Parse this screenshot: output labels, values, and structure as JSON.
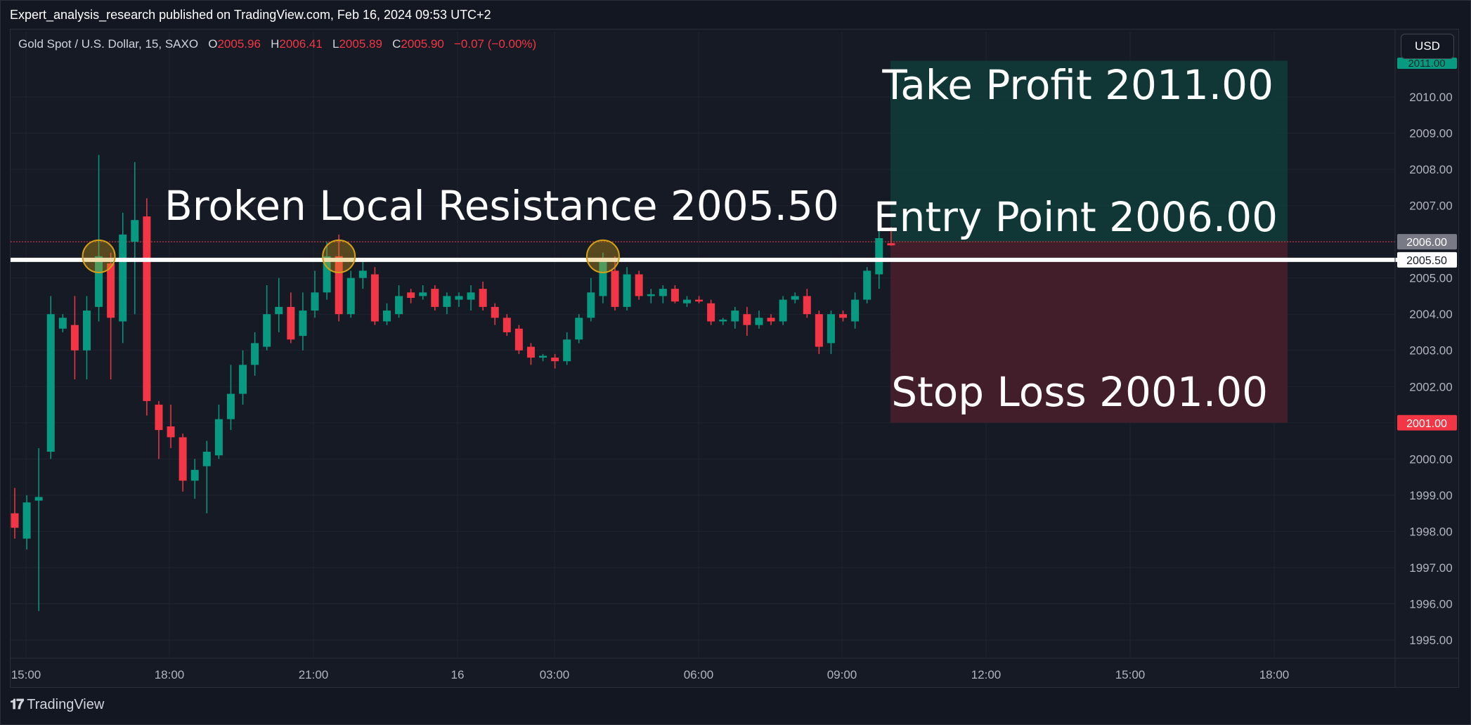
{
  "header": {
    "publisher": "Expert_analysis_research published on TradingView.com, Feb 16, 2024 09:53 UTC+2",
    "symbol": "Gold Spot / U.S. Dollar, 15, SAXO",
    "ohlc": {
      "o_label": "O",
      "o": "2005.96",
      "h_label": "H",
      "h": "2006.41",
      "l_label": "L",
      "l": "2005.89",
      "c_label": "C",
      "c": "2005.90",
      "change": "−0.07 (−0.00%)"
    },
    "currency": "USD"
  },
  "footer": {
    "brand": "TradingView"
  },
  "colors": {
    "up": "#089981",
    "down": "#f23645",
    "background": "#131722",
    "grid": "#1f2430",
    "resistance_line": "#ffffff",
    "marker": "#d4a017"
  },
  "chart_data": {
    "type": "candlestick",
    "y_range": [
      1994.6,
      2011.2
    ],
    "y_ticks": [
      "1995.00",
      "1996.00",
      "1997.00",
      "1998.00",
      "1999.00",
      "2000.00",
      "2001.00",
      "2002.00",
      "2003.00",
      "2004.00",
      "2005.00",
      "2006.00",
      "2007.00",
      "2008.00",
      "2009.00",
      "2010.00"
    ],
    "x_ticks": [
      "15:00",
      "18:00",
      "21:00",
      "16",
      "03:00",
      "06:00",
      "09:00",
      "12:00",
      "15:00",
      "18:00"
    ],
    "candles": [
      {
        "o": 1998.5,
        "h": 1999.2,
        "l": 1997.8,
        "c": 1998.1
      },
      {
        "o": 1997.8,
        "h": 1999.0,
        "l": 1997.5,
        "c": 1998.8
      },
      {
        "o": 1998.85,
        "h": 2000.3,
        "l": 1995.8,
        "c": 1998.95
      },
      {
        "o": 2000.2,
        "h": 2004.5,
        "l": 2000.0,
        "c": 2004.0
      },
      {
        "o": 2003.6,
        "h": 2004.0,
        "l": 2003.5,
        "c": 2003.9
      },
      {
        "o": 2003.7,
        "h": 2004.5,
        "l": 2002.2,
        "c": 2003.0
      },
      {
        "o": 2003.0,
        "h": 2004.5,
        "l": 2002.2,
        "c": 2004.1
      },
      {
        "o": 2004.2,
        "h": 2008.4,
        "l": 2003.8,
        "c": 2005.6
      },
      {
        "o": 2005.4,
        "h": 2005.7,
        "l": 2002.2,
        "c": 2003.9
      },
      {
        "o": 2003.8,
        "h": 2006.8,
        "l": 2003.2,
        "c": 2006.2
      },
      {
        "o": 2006.0,
        "h": 2008.2,
        "l": 2004.0,
        "c": 2006.6
      },
      {
        "o": 2006.7,
        "h": 2007.2,
        "l": 2001.2,
        "c": 2001.6
      },
      {
        "o": 2001.5,
        "h": 2001.6,
        "l": 2000.0,
        "c": 2000.8
      },
      {
        "o": 2000.9,
        "h": 2001.5,
        "l": 2000.3,
        "c": 2000.6
      },
      {
        "o": 2000.6,
        "h": 2000.7,
        "l": 1999.1,
        "c": 1999.4
      },
      {
        "o": 1999.4,
        "h": 2000.0,
        "l": 1998.9,
        "c": 1999.7
      },
      {
        "o": 1999.8,
        "h": 2000.5,
        "l": 1998.5,
        "c": 2000.2
      },
      {
        "o": 2000.1,
        "h": 2001.5,
        "l": 2000.0,
        "c": 2001.1
      },
      {
        "o": 2001.1,
        "h": 2002.6,
        "l": 2000.8,
        "c": 2001.8
      },
      {
        "o": 2001.8,
        "h": 2003.0,
        "l": 2001.5,
        "c": 2002.6
      },
      {
        "o": 2002.6,
        "h": 2003.5,
        "l": 2002.3,
        "c": 2003.2
      },
      {
        "o": 2003.1,
        "h": 2004.8,
        "l": 2003.0,
        "c": 2004.0
      },
      {
        "o": 2004.0,
        "h": 2005.0,
        "l": 2003.5,
        "c": 2004.2
      },
      {
        "o": 2004.2,
        "h": 2004.6,
        "l": 2003.2,
        "c": 2003.3
      },
      {
        "o": 2003.4,
        "h": 2004.6,
        "l": 2003.0,
        "c": 2004.1
      },
      {
        "o": 2004.1,
        "h": 2005.2,
        "l": 2003.9,
        "c": 2004.6
      },
      {
        "o": 2004.6,
        "h": 2006.0,
        "l": 2004.4,
        "c": 2005.6
      },
      {
        "o": 2005.6,
        "h": 2006.2,
        "l": 2003.8,
        "c": 2004.0
      },
      {
        "o": 2004.0,
        "h": 2005.2,
        "l": 2003.9,
        "c": 2005.0
      },
      {
        "o": 2005.0,
        "h": 2005.5,
        "l": 2004.7,
        "c": 2005.2
      },
      {
        "o": 2005.1,
        "h": 2005.3,
        "l": 2003.7,
        "c": 2003.8
      },
      {
        "o": 2003.8,
        "h": 2004.3,
        "l": 2003.7,
        "c": 2004.1
      },
      {
        "o": 2004.0,
        "h": 2004.8,
        "l": 2003.9,
        "c": 2004.5
      },
      {
        "o": 2004.6,
        "h": 2004.7,
        "l": 2004.3,
        "c": 2004.45
      },
      {
        "o": 2004.5,
        "h": 2004.8,
        "l": 2004.4,
        "c": 2004.6
      },
      {
        "o": 2004.7,
        "h": 2004.8,
        "l": 2004.1,
        "c": 2004.2
      },
      {
        "o": 2004.2,
        "h": 2004.6,
        "l": 2004.0,
        "c": 2004.5
      },
      {
        "o": 2004.4,
        "h": 2004.6,
        "l": 2004.2,
        "c": 2004.5
      },
      {
        "o": 2004.4,
        "h": 2004.8,
        "l": 2004.1,
        "c": 2004.6
      },
      {
        "o": 2004.7,
        "h": 2004.9,
        "l": 2004.1,
        "c": 2004.2
      },
      {
        "o": 2004.2,
        "h": 2004.3,
        "l": 2003.7,
        "c": 2003.9
      },
      {
        "o": 2003.9,
        "h": 2004.0,
        "l": 2003.4,
        "c": 2003.5
      },
      {
        "o": 2003.6,
        "h": 2003.7,
        "l": 2002.9,
        "c": 2003.0
      },
      {
        "o": 2003.1,
        "h": 2003.2,
        "l": 2002.6,
        "c": 2002.8
      },
      {
        "o": 2002.8,
        "h": 2002.9,
        "l": 2002.7,
        "c": 2002.85
      },
      {
        "o": 2002.8,
        "h": 2002.9,
        "l": 2002.5,
        "c": 2002.7
      },
      {
        "o": 2002.7,
        "h": 2003.5,
        "l": 2002.6,
        "c": 2003.3
      },
      {
        "o": 2003.3,
        "h": 2004.0,
        "l": 2003.2,
        "c": 2003.9
      },
      {
        "o": 2003.9,
        "h": 2005.0,
        "l": 2003.8,
        "c": 2004.6
      },
      {
        "o": 2004.5,
        "h": 2005.7,
        "l": 2004.3,
        "c": 2005.5
      },
      {
        "o": 2005.2,
        "h": 2005.6,
        "l": 2004.1,
        "c": 2004.2
      },
      {
        "o": 2004.2,
        "h": 2005.3,
        "l": 2004.1,
        "c": 2005.1
      },
      {
        "o": 2005.1,
        "h": 2005.2,
        "l": 2004.4,
        "c": 2004.5
      },
      {
        "o": 2004.5,
        "h": 2004.7,
        "l": 2004.3,
        "c": 2004.55
      },
      {
        "o": 2004.5,
        "h": 2004.8,
        "l": 2004.3,
        "c": 2004.7
      },
      {
        "o": 2004.7,
        "h": 2004.8,
        "l": 2004.3,
        "c": 2004.35
      },
      {
        "o": 2004.3,
        "h": 2004.5,
        "l": 2004.2,
        "c": 2004.4
      },
      {
        "o": 2004.4,
        "h": 2004.5,
        "l": 2004.3,
        "c": 2004.35
      },
      {
        "o": 2004.3,
        "h": 2004.4,
        "l": 2003.7,
        "c": 2003.8
      },
      {
        "o": 2003.8,
        "h": 2003.9,
        "l": 2003.7,
        "c": 2003.85
      },
      {
        "o": 2003.8,
        "h": 2004.2,
        "l": 2003.6,
        "c": 2004.1
      },
      {
        "o": 2004.0,
        "h": 2004.2,
        "l": 2003.4,
        "c": 2003.7
      },
      {
        "o": 2003.7,
        "h": 2004.1,
        "l": 2003.6,
        "c": 2003.9
      },
      {
        "o": 2003.9,
        "h": 2004.0,
        "l": 2003.7,
        "c": 2003.8
      },
      {
        "o": 2003.8,
        "h": 2004.5,
        "l": 2003.7,
        "c": 2004.4
      },
      {
        "o": 2004.4,
        "h": 2004.6,
        "l": 2004.3,
        "c": 2004.5
      },
      {
        "o": 2004.5,
        "h": 2004.7,
        "l": 2003.9,
        "c": 2004.0
      },
      {
        "o": 2004.0,
        "h": 2004.1,
        "l": 2002.9,
        "c": 2003.1
      },
      {
        "o": 2003.2,
        "h": 2004.1,
        "l": 2002.9,
        "c": 2004.0
      },
      {
        "o": 2004.0,
        "h": 2004.1,
        "l": 2003.8,
        "c": 2003.9
      },
      {
        "o": 2003.8,
        "h": 2004.6,
        "l": 2003.6,
        "c": 2004.4
      },
      {
        "o": 2004.4,
        "h": 2005.3,
        "l": 2004.3,
        "c": 2005.2
      },
      {
        "o": 2005.1,
        "h": 2006.6,
        "l": 2004.7,
        "c": 2006.1
      },
      {
        "o": 2005.96,
        "h": 2006.41,
        "l": 2005.89,
        "c": 2005.9
      }
    ],
    "resistance": {
      "value": 2005.5,
      "label": "Broken Local Resistance 2005.50",
      "axis_label": "2005.50"
    },
    "marker_candles": [
      7,
      27,
      49
    ],
    "position": {
      "entry": 2006.0,
      "take_profit": 2011.0,
      "stop_loss": 2001.0,
      "entry_text": "Entry Point 2006.00",
      "tp_text": "Take Profit 2011.00",
      "sl_text": "Stop Loss 2001.00",
      "entry_axis_label": "2006.00",
      "sl_axis_label": "2001.00",
      "tp_axis_label": "2011.00"
    }
  }
}
